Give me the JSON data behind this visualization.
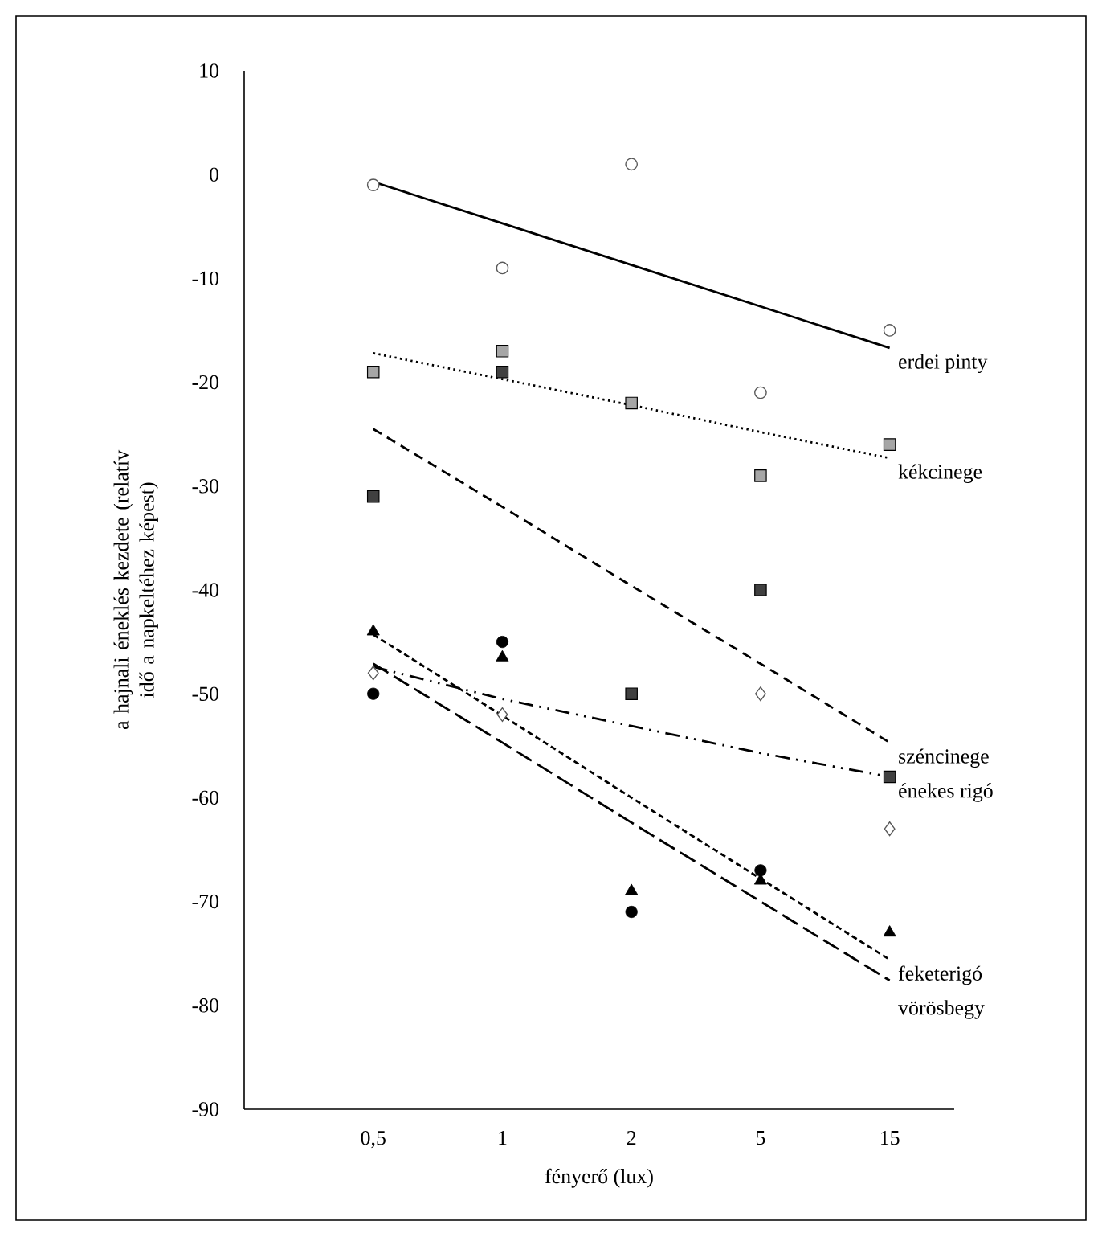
{
  "chart_data": {
    "type": "scatter",
    "xlabel": "fényerő (lux)",
    "ylabel": "a hajnali éneklés kezdete (relatív idő a napkeltéhez képest)",
    "categories": [
      "0,5",
      "1",
      "2",
      "5",
      "15"
    ],
    "ylim": [
      -90,
      10
    ],
    "yticks": [
      -90,
      -80,
      -70,
      -60,
      -50,
      -40,
      -30,
      -20,
      -10,
      0,
      10
    ],
    "series": [
      {
        "marker": "circle",
        "color": "#595959",
        "values": [
          -1,
          -9,
          1,
          -21,
          -15
        ]
      },
      {
        "type": "line",
        "name": "erdei pinty",
        "line_style": "solid",
        "color": "#000000",
        "values": [
          -0.7,
          -4.7,
          -8.7,
          -12.7,
          -16.7
        ]
      },
      {
        "marker": "square",
        "color": "#a6a6a6",
        "values": [
          -19,
          -17,
          -22,
          -29,
          -26
        ]
      },
      {
        "type": "line",
        "name": "kékcinege",
        "line_style": "dotted",
        "color": "#000000",
        "values": [
          -17.2,
          -19.7,
          -22.2,
          -24.8,
          -27.3
        ]
      },
      {
        "marker": "square",
        "color": "#404040",
        "values": [
          -31,
          -19,
          -50,
          -40,
          -58
        ]
      },
      {
        "type": "line",
        "name": "széncinege",
        "line_style": "dashed",
        "color": "#000000",
        "values": [
          -24.5,
          -32.0,
          -39.6,
          -47.1,
          -54.7
        ]
      },
      {
        "marker": "diamond",
        "color": "#595959",
        "values": [
          -48,
          -52,
          null,
          -50,
          -63
        ]
      },
      {
        "type": "line",
        "name": "énekes rigó",
        "line_style": "dashdot",
        "color": "#000000",
        "values": [
          -47.4,
          -50.5,
          -53.1,
          -55.7,
          -58.0
        ]
      },
      {
        "marker": "triangle",
        "color": "#000000",
        "values": [
          -44,
          -46.5,
          -69,
          -68,
          -73
        ]
      },
      {
        "type": "line",
        "name": "feketerigó",
        "line_style": "densely dashed",
        "color": "#000000",
        "values": [
          -44.3,
          -52.1,
          -60.0,
          -67.8,
          -75.6
        ]
      },
      {
        "marker": "circle",
        "color": "#000000",
        "values": [
          -50,
          -45,
          -71,
          -67,
          null
        ]
      },
      {
        "type": "line",
        "name": "vörösbegy",
        "line_style": "loosely dashed",
        "color": "#000000",
        "values": [
          -47.1,
          -54.7,
          -62.4,
          -70.0,
          -77.6
        ]
      }
    ]
  }
}
